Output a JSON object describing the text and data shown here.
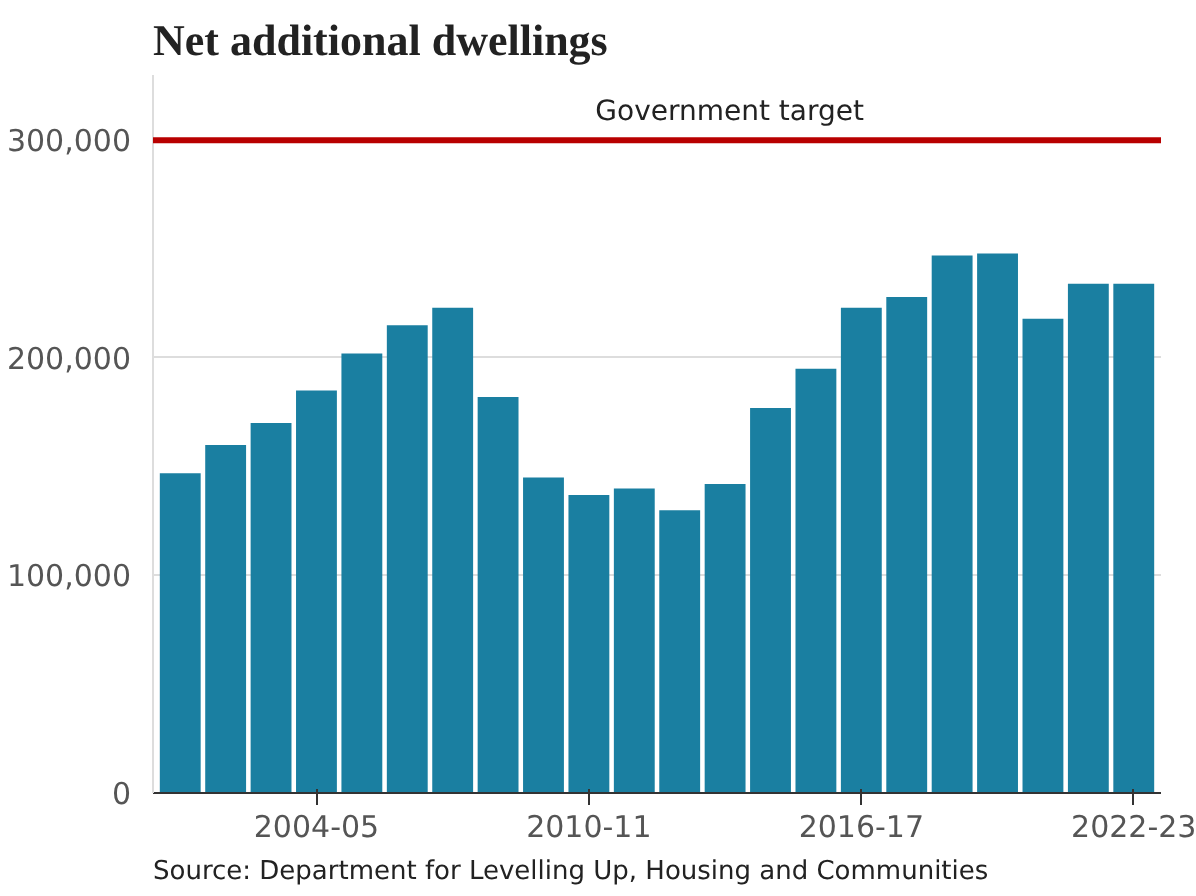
{
  "chart_data": {
    "type": "bar",
    "title": "Net additional dwellings",
    "categories": [
      null,
      null,
      null,
      "2004-05",
      null,
      null,
      null,
      null,
      null,
      "2010-11",
      null,
      null,
      null,
      null,
      null,
      "2016-17",
      null,
      null,
      null,
      null,
      null,
      "2022-23"
    ],
    "values": [
      147000,
      160000,
      170000,
      185000,
      202000,
      215000,
      223000,
      182000,
      145000,
      137000,
      140000,
      130000,
      142000,
      177000,
      195000,
      223000,
      228000,
      247000,
      248000,
      218000,
      234000,
      234000
    ],
    "color": "#1a7fa1",
    "ylim": [
      0,
      330000
    ],
    "yticks": [
      0,
      {
        "value": 100000,
        "label": "100,000"
      },
      {
        "value": 200000,
        "label": "200,000"
      },
      {
        "value": 300000,
        "label": "300,000"
      }
    ],
    "grid": "y",
    "ref_lines": [
      {
        "axis": "y",
        "value": 300000,
        "label": "Government target",
        "color": "#b80000"
      }
    ],
    "annotations": [
      "Source: Department for Levelling Up, Housing and Communities"
    ]
  }
}
